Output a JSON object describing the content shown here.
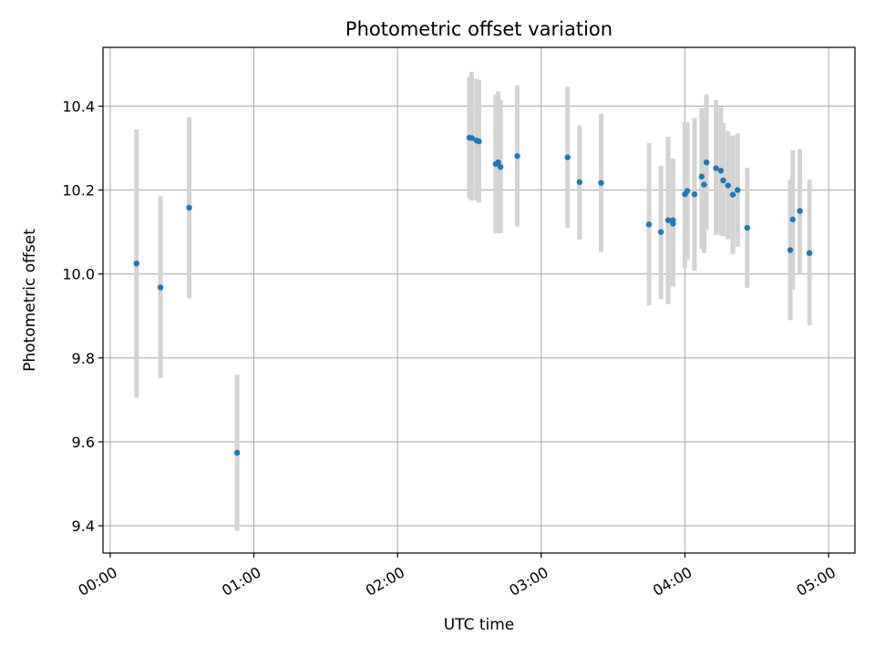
{
  "chart_data": {
    "type": "scatter",
    "title": "Photometric offset variation",
    "xlabel": "UTC time",
    "ylabel": "Photometric offset",
    "x_unit": "time",
    "xlim": [
      "-0:03",
      "5:11"
    ],
    "ylim": [
      9.335,
      10.54
    ],
    "x_ticks": [
      "00:00",
      "01:00",
      "02:00",
      "03:00",
      "04:00",
      "05:00"
    ],
    "y_ticks": [
      9.4,
      9.6,
      9.8,
      10.0,
      10.2,
      10.4
    ],
    "y_tick_labels": [
      "9.4",
      "9.6",
      "9.8",
      "10.0",
      "10.2",
      "10.4"
    ],
    "grid": true,
    "point_color": "#1f77b4",
    "errorbar_color": "#d3d3d3",
    "points": [
      {
        "x": "0:11",
        "y": 10.025,
        "ylow": 9.705,
        "yhigh": 10.345
      },
      {
        "x": "0:21",
        "y": 9.968,
        "ylow": 9.752,
        "yhigh": 10.185
      },
      {
        "x": "0:33",
        "y": 10.158,
        "ylow": 9.942,
        "yhigh": 10.374
      },
      {
        "x": "0:53",
        "y": 9.574,
        "ylow": 9.388,
        "yhigh": 9.76
      },
      {
        "x": "2:30",
        "y": 10.325,
        "ylow": 10.18,
        "yhigh": 10.47
      },
      {
        "x": "2:31",
        "y": 10.324,
        "ylow": 10.175,
        "yhigh": 10.482
      },
      {
        "x": "2:33",
        "y": 10.318,
        "ylow": 10.175,
        "yhigh": 10.465
      },
      {
        "x": "2:34",
        "y": 10.316,
        "ylow": 10.17,
        "yhigh": 10.462
      },
      {
        "x": "2:41",
        "y": 10.262,
        "ylow": 10.097,
        "yhigh": 10.428
      },
      {
        "x": "2:42",
        "y": 10.266,
        "ylow": 10.097,
        "yhigh": 10.435
      },
      {
        "x": "2:43",
        "y": 10.255,
        "ylow": 10.097,
        "yhigh": 10.415
      },
      {
        "x": "2:50",
        "y": 10.281,
        "ylow": 10.113,
        "yhigh": 10.449
      },
      {
        "x": "3:11",
        "y": 10.278,
        "ylow": 10.11,
        "yhigh": 10.446
      },
      {
        "x": "3:16",
        "y": 10.219,
        "ylow": 10.082,
        "yhigh": 10.354
      },
      {
        "x": "3:25",
        "y": 10.217,
        "ylow": 10.052,
        "yhigh": 10.382
      },
      {
        "x": "3:45",
        "y": 10.118,
        "ylow": 9.925,
        "yhigh": 10.312
      },
      {
        "x": "3:50",
        "y": 10.1,
        "ylow": 9.94,
        "yhigh": 10.258
      },
      {
        "x": "3:53",
        "y": 10.128,
        "ylow": 9.928,
        "yhigh": 10.327
      },
      {
        "x": "3:55",
        "y": 10.128,
        "ylow": 9.97,
        "yhigh": 10.275
      },
      {
        "x": "3:55",
        "y": 10.12,
        "ylow": 9.97,
        "yhigh": 10.27
      },
      {
        "x": "4:00",
        "y": 10.19,
        "ylow": 10.015,
        "yhigh": 10.362
      },
      {
        "x": "4:01",
        "y": 10.198,
        "ylow": 10.035,
        "yhigh": 10.362
      },
      {
        "x": "4:04",
        "y": 10.19,
        "ylow": 10.008,
        "yhigh": 10.372
      },
      {
        "x": "4:07",
        "y": 10.232,
        "ylow": 10.06,
        "yhigh": 10.395
      },
      {
        "x": "4:08",
        "y": 10.213,
        "ylow": 10.05,
        "yhigh": 10.375
      },
      {
        "x": "4:09",
        "y": 10.266,
        "ylow": 10.105,
        "yhigh": 10.428
      },
      {
        "x": "4:13",
        "y": 10.252,
        "ylow": 10.093,
        "yhigh": 10.414
      },
      {
        "x": "4:15",
        "y": 10.246,
        "ylow": 10.093,
        "yhigh": 10.398
      },
      {
        "x": "4:16",
        "y": 10.223,
        "ylow": 10.09,
        "yhigh": 10.36
      },
      {
        "x": "4:18",
        "y": 10.211,
        "ylow": 10.083,
        "yhigh": 10.34
      },
      {
        "x": "4:20",
        "y": 10.189,
        "ylow": 10.048,
        "yhigh": 10.33
      },
      {
        "x": "4:22",
        "y": 10.2,
        "ylow": 10.065,
        "yhigh": 10.335
      },
      {
        "x": "4:26",
        "y": 10.11,
        "ylow": 9.967,
        "yhigh": 10.253
      },
      {
        "x": "4:44",
        "y": 10.057,
        "ylow": 9.89,
        "yhigh": 10.225
      },
      {
        "x": "4:45",
        "y": 10.13,
        "ylow": 9.962,
        "yhigh": 10.295
      },
      {
        "x": "4:48",
        "y": 10.15,
        "ylow": 10.0,
        "yhigh": 10.298
      },
      {
        "x": "4:52",
        "y": 10.05,
        "ylow": 9.878,
        "yhigh": 10.225
      }
    ]
  }
}
